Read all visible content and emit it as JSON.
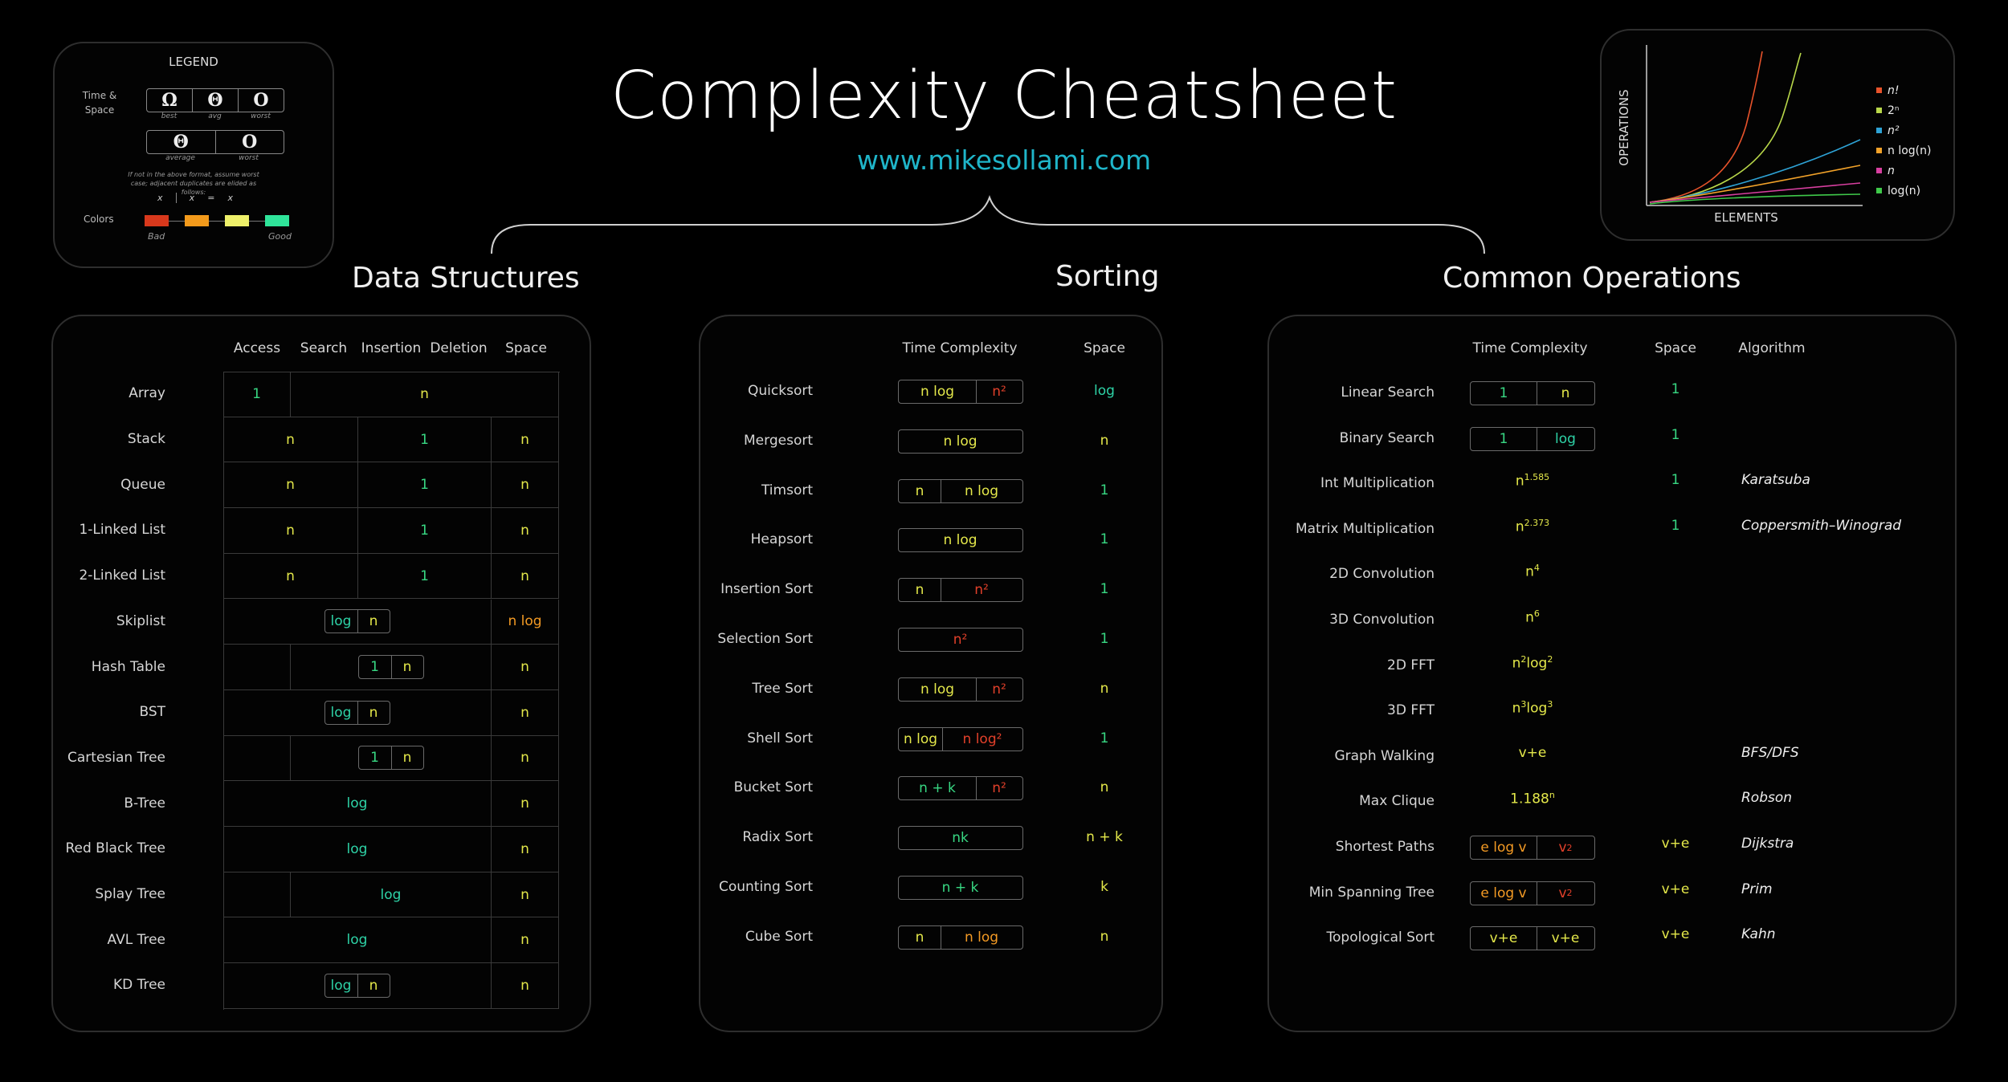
{
  "header": {
    "title": "Complexity Cheatsheet",
    "url": "www.mikesollami.com"
  },
  "legend": {
    "title": "LEGEND",
    "time_space_label": "Time & Space",
    "row1": [
      {
        "sym": "Ω",
        "caption": "best"
      },
      {
        "sym": "Θ",
        "caption": "avg"
      },
      {
        "sym": "O",
        "caption": "worst"
      }
    ],
    "row2": [
      {
        "sym": "Θ",
        "caption": "average"
      },
      {
        "sym": "O",
        "caption": "worst"
      }
    ],
    "note": "If not in the above format, assume worst case; adjacent duplicates are elided as follows:",
    "elide_example": [
      "x",
      "x",
      "=",
      "x"
    ],
    "colors_label": "Colors",
    "bad_label": "Bad",
    "good_label": "Good",
    "swatches": [
      "#d8381c",
      "#f39a1b",
      "#eef06a",
      "#2fe49a"
    ]
  },
  "growth_chart": {
    "ylabel": "OPERATIONS",
    "xlabel": "ELEMENTS",
    "legend": [
      {
        "label": "n!",
        "color": "#e8532b"
      },
      {
        "label": "2ⁿ",
        "color": "#b9d84a"
      },
      {
        "label": "n²",
        "color": "#2ea3d6"
      },
      {
        "label": "n log(n)",
        "color": "#f2a229"
      },
      {
        "label": "n",
        "color": "#d83fa0"
      },
      {
        "label": "log(n)",
        "color": "#3fc94a"
      }
    ]
  },
  "sections": {
    "ds": "Data Structures",
    "sorting": "Sorting",
    "ops": "Common Operations"
  },
  "ds": {
    "headers": [
      "Access",
      "Search",
      "Insertion",
      "Deletion",
      "Space"
    ],
    "rows": [
      "Array",
      "Stack",
      "Queue",
      "1-Linked List",
      "2-Linked List",
      "Skiplist",
      "Hash Table",
      "BST",
      "Cartesian Tree",
      "B-Tree",
      "Red Black Tree",
      "Splay Tree",
      "AVL Tree",
      "KD Tree"
    ],
    "values": {
      "array_access": "1",
      "array_rest": "n",
      "stack_as": "n",
      "stack_id": "1",
      "stack_sp": "n",
      "queue_as": "n",
      "queue_id": "1",
      "queue_sp": "n",
      "l1_as": "n",
      "l1_id": "1",
      "l1_sp": "n",
      "l2_as": "n",
      "l2_id": "1",
      "l2_sp": "n",
      "skip_a": "log",
      "skip_b": "n",
      "skip_sp": "n log",
      "hash_a": "1",
      "hash_b": "n",
      "hash_sp": "n",
      "bst_a": "log",
      "bst_b": "n",
      "bst_sp": "n",
      "cart_a": "1",
      "cart_b": "n",
      "cart_sp": "n",
      "btree": "log",
      "btree_sp": "n",
      "rb": "log",
      "rb_sp": "n",
      "splay": "log",
      "splay_sp": "n",
      "avl": "log",
      "avl_sp": "n",
      "kd_a": "log",
      "kd_b": "n",
      "kd_sp": "n"
    }
  },
  "sorting": {
    "headers": [
      "Time Complexity",
      "Space"
    ],
    "rows": [
      {
        "name": "Quicksort",
        "cells": [
          "n log",
          "n²"
        ],
        "space": "log"
      },
      {
        "name": "Mergesort",
        "cells": [
          "n log"
        ],
        "space": "n"
      },
      {
        "name": "Timsort",
        "cells": [
          "n",
          "n log"
        ],
        "space": "1"
      },
      {
        "name": "Heapsort",
        "cells": [
          "n log"
        ],
        "space": "1"
      },
      {
        "name": "Insertion Sort",
        "cells": [
          "n",
          "n²"
        ],
        "space": "1"
      },
      {
        "name": "Selection Sort",
        "cells": [
          "n²"
        ],
        "space": "1"
      },
      {
        "name": "Tree Sort",
        "cells": [
          "n log",
          "n²"
        ],
        "space": "n"
      },
      {
        "name": "Shell Sort",
        "cells": [
          "n log",
          "n log²"
        ],
        "space": "1"
      },
      {
        "name": "Bucket Sort",
        "cells": [
          "n + k",
          "n²"
        ],
        "space": "n"
      },
      {
        "name": "Radix Sort",
        "cells": [
          "nk"
        ],
        "space": "n + k"
      },
      {
        "name": "Counting Sort",
        "cells": [
          "n + k"
        ],
        "space": "k"
      },
      {
        "name": "Cube Sort",
        "cells": [
          "n",
          "n log"
        ],
        "space": "n"
      }
    ]
  },
  "ops": {
    "headers": [
      "Time Complexity",
      "Space",
      "Algorithm"
    ],
    "rows": [
      {
        "name": "Linear Search",
        "time": [
          "1",
          "n"
        ],
        "space": "1",
        "algo": ""
      },
      {
        "name": "Binary Search",
        "time": [
          "1",
          "log"
        ],
        "space": "1",
        "algo": ""
      },
      {
        "name": "Int Multiplication",
        "time": [
          "n1.585"
        ],
        "space": "1",
        "algo": "Karatsuba"
      },
      {
        "name": "Matrix Multiplication",
        "time": [
          "n2.373"
        ],
        "space": "1",
        "algo": "Coppersmith–Winograd"
      },
      {
        "name": "2D Convolution",
        "time": [
          "n4"
        ],
        "space": "",
        "algo": ""
      },
      {
        "name": "3D Convolution",
        "time": [
          "n6"
        ],
        "space": "",
        "algo": ""
      },
      {
        "name": "2D FFT",
        "time": [
          "n2 log2"
        ],
        "space": "",
        "algo": ""
      },
      {
        "name": "3D FFT",
        "time": [
          "n3 log3"
        ],
        "space": "",
        "algo": ""
      },
      {
        "name": "Graph Walking",
        "time": [
          "v+e"
        ],
        "space": "",
        "algo": "BFS/DFS"
      },
      {
        "name": "Max Clique",
        "time": [
          "1.188n"
        ],
        "space": "",
        "algo": "Robson"
      },
      {
        "name": "Shortest Paths",
        "time": [
          "e log v",
          "v2"
        ],
        "space": "v+e",
        "algo": "Dijkstra"
      },
      {
        "name": "Min Spanning Tree",
        "time": [
          "e log v",
          "v2"
        ],
        "space": "v+e",
        "algo": "Prim"
      },
      {
        "name": "Topological Sort",
        "time": [
          "v+e",
          "v+e"
        ],
        "space": "v+e",
        "algo": "Kahn"
      }
    ]
  }
}
